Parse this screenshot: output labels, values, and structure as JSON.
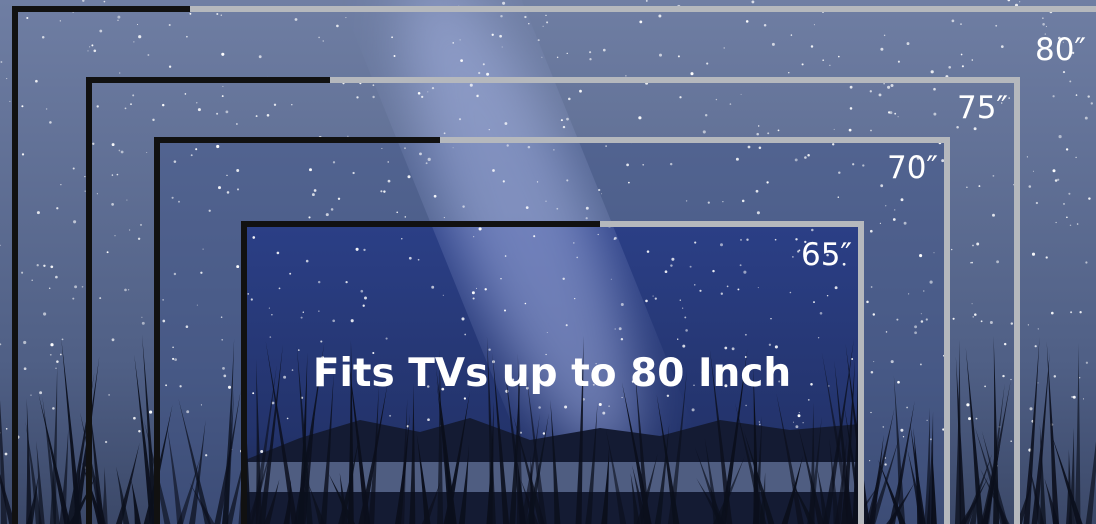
{
  "sizes": [
    "80″",
    "75″",
    "70″",
    "65″"
  ],
  "headline": "Fits TVs up to 80 Inch"
}
